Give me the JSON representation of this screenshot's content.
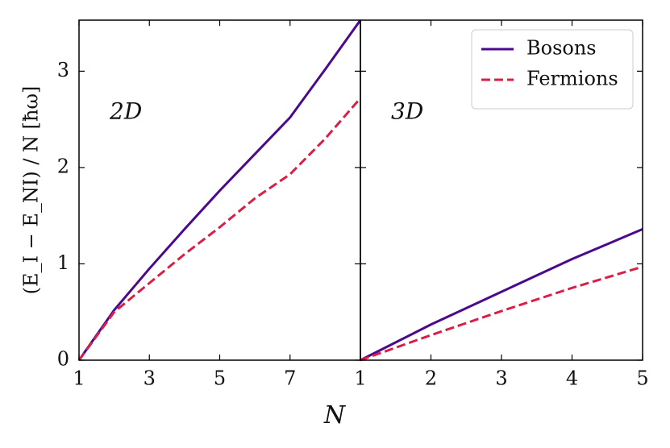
{
  "chart_data": [
    {
      "type": "line",
      "ylabel": "(E_I − E_NI) / N [ħω]",
      "xlabel": "N",
      "annotation": "2D",
      "x": [
        1,
        2,
        3,
        4,
        5,
        6,
        7,
        8,
        9
      ],
      "series": [
        {
          "color": "#4b0a8c",
          "dash": "solid",
          "values": [
            0,
            0.52,
            0.95,
            1.36,
            1.76,
            2.14,
            2.52,
            3.02,
            3.53
          ]
        },
        {
          "color": "#dc1e46",
          "dash": "dashed",
          "values": [
            0,
            0.5,
            0.8,
            1.1,
            1.38,
            1.68,
            1.93,
            2.3,
            2.72
          ]
        }
      ],
      "xlim": [
        1,
        9
      ],
      "ylim": [
        0,
        3.53
      ],
      "xticks": [
        1,
        3,
        5,
        7
      ],
      "yticks": [
        0,
        1,
        2,
        3
      ],
      "ytick_labels": true
    },
    {
      "type": "line",
      "annotation": "3D",
      "x": [
        1,
        2,
        3,
        4,
        5
      ],
      "series": [
        {
          "name": "Bosons",
          "color": "#4b0a8c",
          "dash": "solid",
          "values": [
            0,
            0.37,
            0.71,
            1.05,
            1.36
          ]
        },
        {
          "name": "Fermions",
          "color": "#dc1e46",
          "dash": "dashed",
          "values": [
            0,
            0.26,
            0.51,
            0.75,
            0.97
          ]
        }
      ],
      "xlim": [
        1,
        5
      ],
      "ylim": [
        0,
        3.53
      ],
      "xticks": [
        1,
        2,
        3,
        4,
        5
      ],
      "yticks": [
        0,
        1,
        2,
        3
      ],
      "ytick_labels": false,
      "legend": "upper right"
    }
  ]
}
